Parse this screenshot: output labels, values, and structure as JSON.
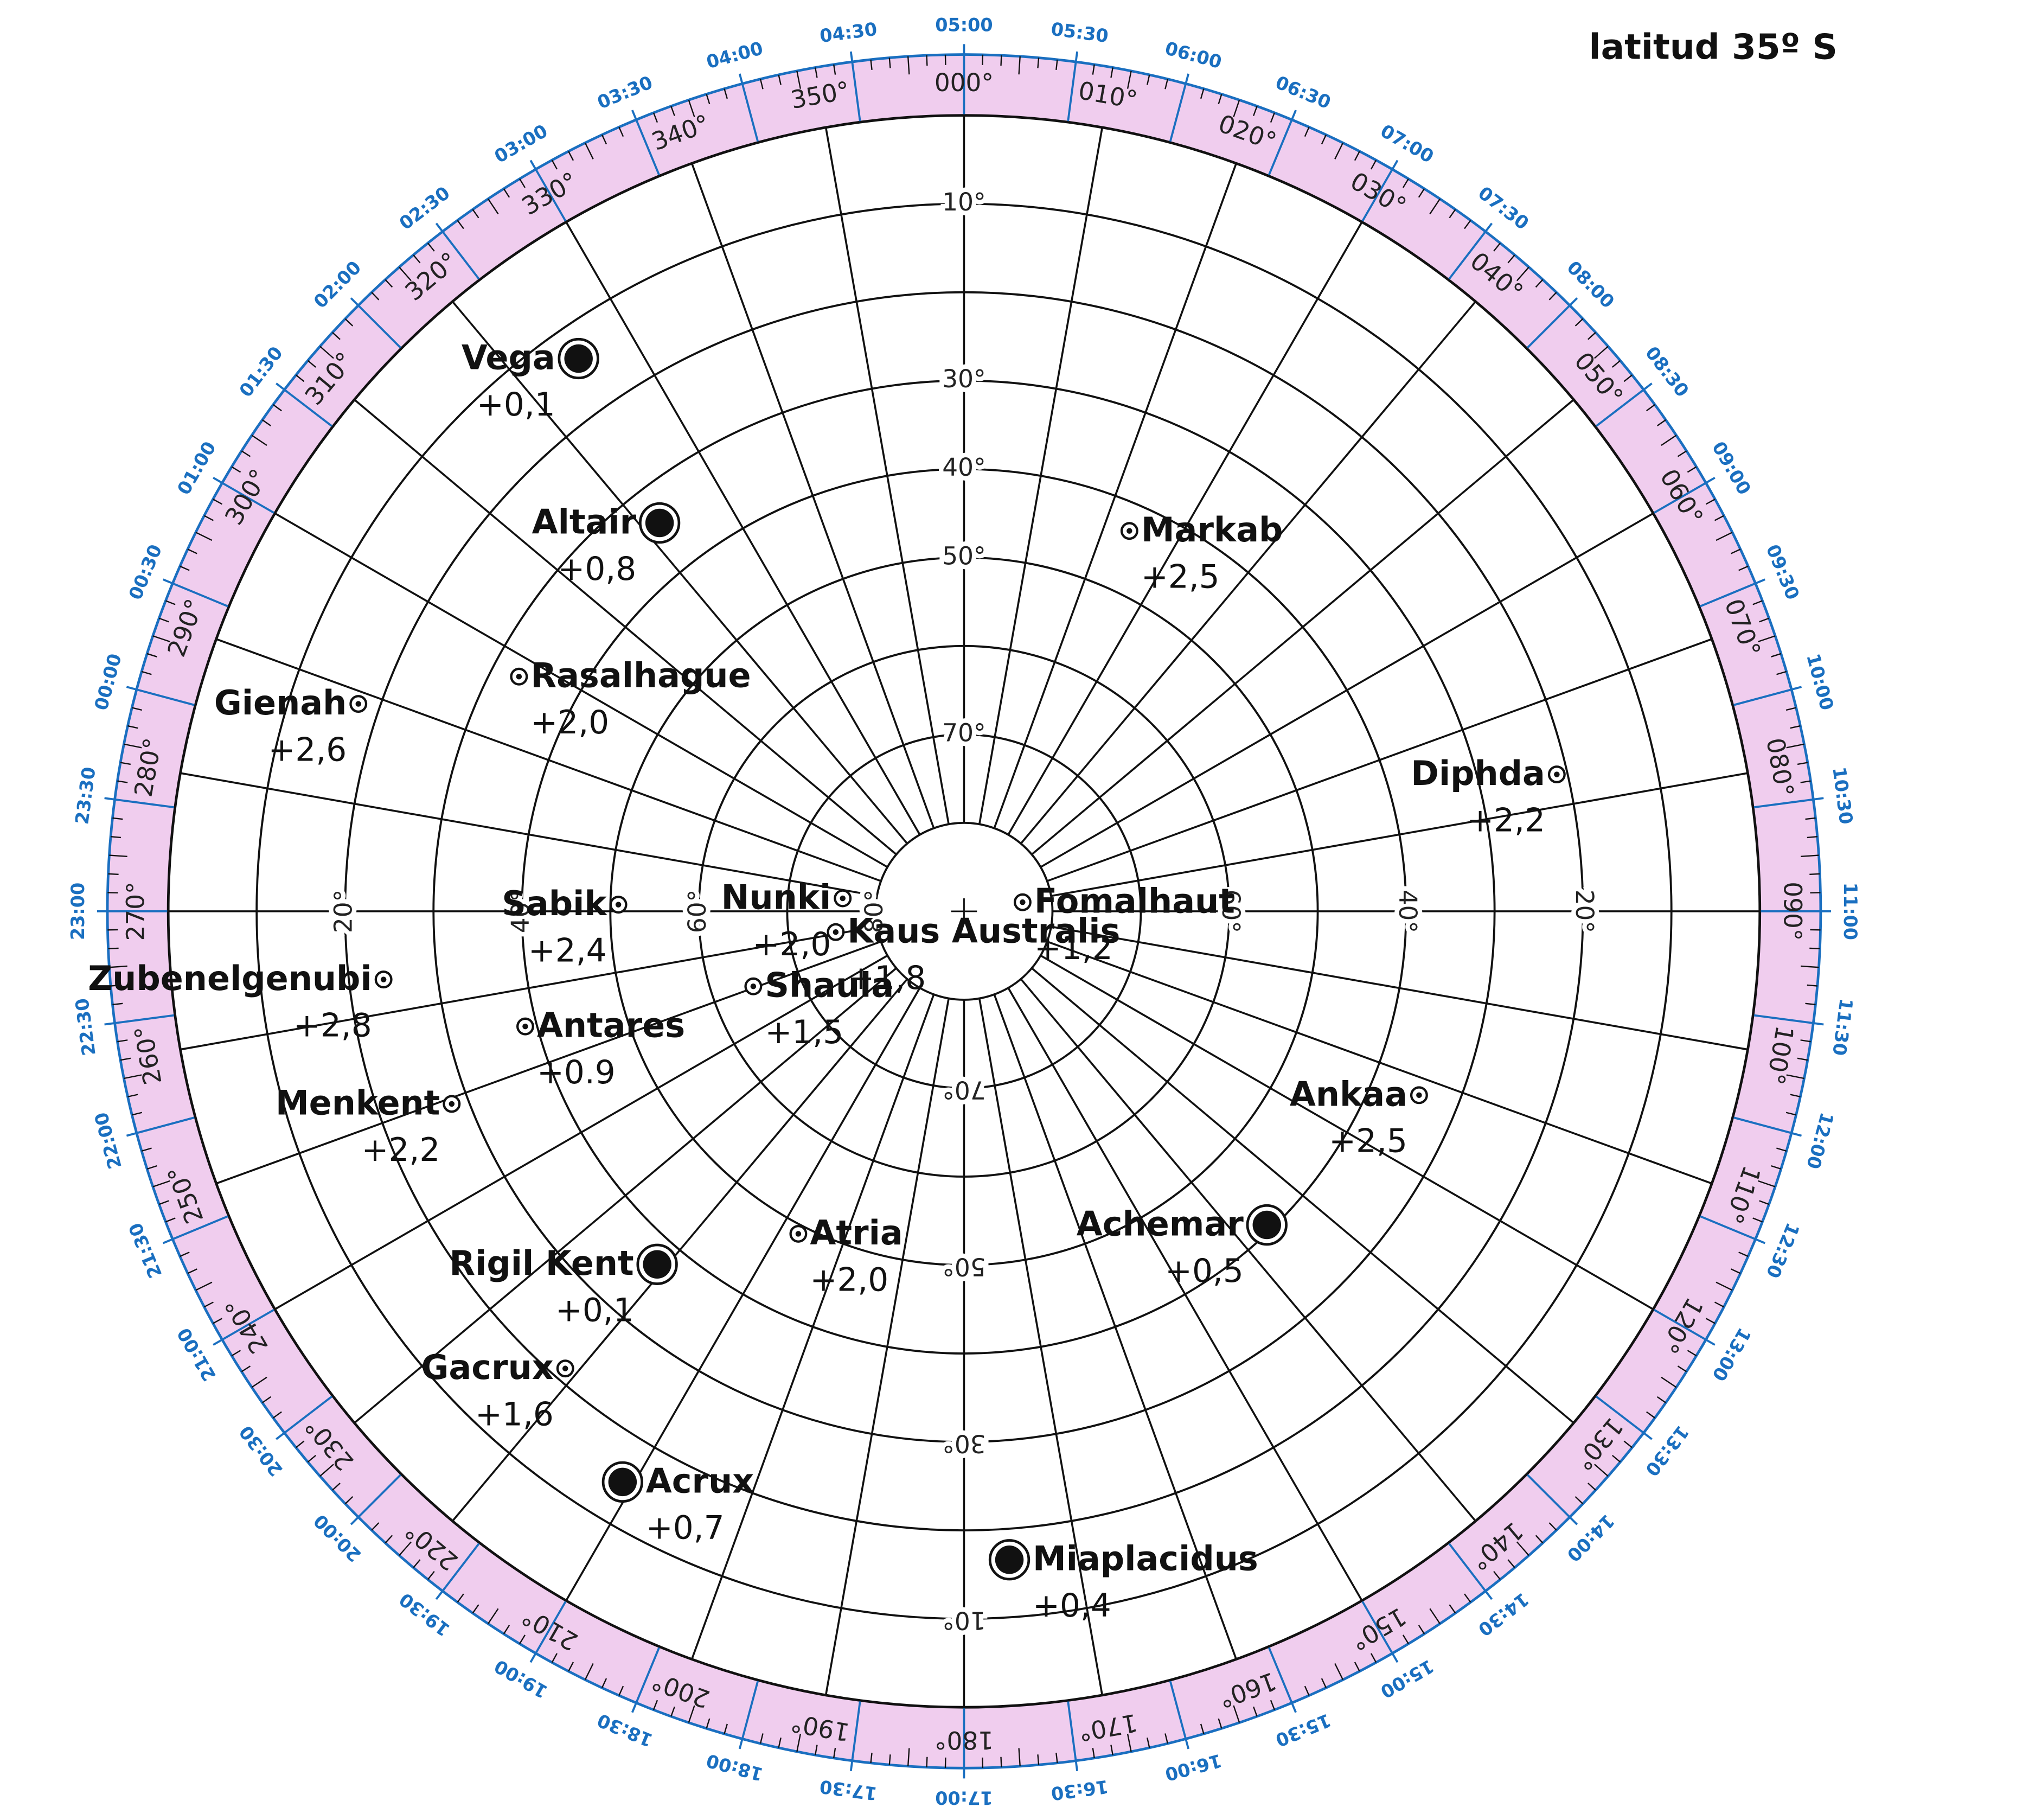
{
  "title": "latitud 35º S",
  "altitude_grid": [
    0,
    10,
    20,
    30,
    40,
    50,
    60,
    70,
    80
  ],
  "altitude_labels": {
    "n": [
      {
        "value": 10,
        "label": "10°"
      },
      {
        "value": 30,
        "label": "30°"
      },
      {
        "value": 40,
        "label": "40°"
      },
      {
        "value": 50,
        "label": "50°"
      },
      {
        "value": 70,
        "label": "70°"
      }
    ],
    "w": [
      {
        "value": 20,
        "label": "20°"
      },
      {
        "value": 40,
        "label": "40°"
      },
      {
        "value": 60,
        "label": "60°"
      },
      {
        "value": 80,
        "label": "80°"
      }
    ],
    "e": [
      {
        "value": 20,
        "label": "20°"
      },
      {
        "value": 40,
        "label": "40°"
      },
      {
        "value": 60,
        "label": "60°"
      }
    ],
    "s": [
      {
        "value": 10,
        "label": "10°"
      },
      {
        "value": 30,
        "label": "30°"
      },
      {
        "value": 50,
        "label": "50°"
      },
      {
        "value": 70,
        "label": "70°"
      }
    ]
  },
  "azimuth_ticks": [
    {
      "value": 0,
      "label": "000°"
    },
    {
      "value": 10,
      "label": "010°"
    },
    {
      "value": 20,
      "label": "020°"
    },
    {
      "value": 30,
      "label": "030°"
    },
    {
      "value": 40,
      "label": "040°"
    },
    {
      "value": 50,
      "label": "050°"
    },
    {
      "value": 60,
      "label": "060°"
    },
    {
      "value": 70,
      "label": "070°"
    },
    {
      "value": 80,
      "label": "080°"
    },
    {
      "value": 90,
      "label": "090°"
    },
    {
      "value": 100,
      "label": "100°"
    },
    {
      "value": 110,
      "label": "110°"
    },
    {
      "value": 120,
      "label": "120°"
    },
    {
      "value": 130,
      "label": "130°"
    },
    {
      "value": 140,
      "label": "140°"
    },
    {
      "value": 150,
      "label": "150°"
    },
    {
      "value": 160,
      "label": "160°"
    },
    {
      "value": 170,
      "label": "170°"
    },
    {
      "value": 180,
      "label": "180°"
    },
    {
      "value": 190,
      "label": "190°"
    },
    {
      "value": 200,
      "label": "200°"
    },
    {
      "value": 210,
      "label": "210°"
    },
    {
      "value": 220,
      "label": "220°"
    },
    {
      "value": 230,
      "label": "230°"
    },
    {
      "value": 240,
      "label": "240°"
    },
    {
      "value": 250,
      "label": "250°"
    },
    {
      "value": 260,
      "label": "260°"
    },
    {
      "value": 270,
      "label": "270°"
    },
    {
      "value": 280,
      "label": "280°"
    },
    {
      "value": 290,
      "label": "290°"
    },
    {
      "value": 300,
      "label": "300°"
    },
    {
      "value": 310,
      "label": "310°"
    },
    {
      "value": 320,
      "label": "320°"
    },
    {
      "value": 330,
      "label": "330°"
    },
    {
      "value": 340,
      "label": "340°"
    },
    {
      "value": 350,
      "label": "350°"
    }
  ],
  "time_ticks": [
    {
      "value": 5,
      "label": "05:00"
    },
    {
      "value": 5.5,
      "label": "05:30"
    },
    {
      "value": 6,
      "label": "06:00"
    },
    {
      "value": 6.5,
      "label": "06:30"
    },
    {
      "value": 7,
      "label": "07:00"
    },
    {
      "value": 7.5,
      "label": "07:30"
    },
    {
      "value": 8,
      "label": "08:00"
    },
    {
      "value": 8.5,
      "label": "08:30"
    },
    {
      "value": 9,
      "label": "09:00"
    },
    {
      "value": 9.5,
      "label": "09:30"
    },
    {
      "value": 10,
      "label": "10:00"
    },
    {
      "value": 10.5,
      "label": "10:30"
    },
    {
      "value": 11,
      "label": "11:00"
    },
    {
      "value": 11.5,
      "label": "11:30"
    },
    {
      "value": 12,
      "label": "12:00"
    },
    {
      "value": 12.5,
      "label": "12:30"
    },
    {
      "value": 13,
      "label": "13:00"
    },
    {
      "value": 13.5,
      "label": "13:30"
    },
    {
      "value": 14,
      "label": "14:00"
    },
    {
      "value": 14.5,
      "label": "14:30"
    },
    {
      "value": 15,
      "label": "15:00"
    },
    {
      "value": 15.5,
      "label": "15:30"
    },
    {
      "value": 16,
      "label": "16:00"
    },
    {
      "value": 16.5,
      "label": "16:30"
    },
    {
      "value": 17,
      "label": "17:00"
    },
    {
      "value": 17.5,
      "label": "17:30"
    },
    {
      "value": 18,
      "label": "18:00"
    },
    {
      "value": 18.5,
      "label": "18:30"
    },
    {
      "value": 19,
      "label": "19:00"
    },
    {
      "value": 19.5,
      "label": "19:30"
    },
    {
      "value": 20,
      "label": "20:00"
    },
    {
      "value": 20.5,
      "label": "20:30"
    },
    {
      "value": 21,
      "label": "21:00"
    },
    {
      "value": 21.5,
      "label": "21:30"
    },
    {
      "value": 22,
      "label": "22:00"
    },
    {
      "value": 22.5,
      "label": "22:30"
    },
    {
      "value": 23,
      "label": "23:00"
    },
    {
      "value": 23.5,
      "label": "23:30"
    },
    {
      "value": 0,
      "label": "00:00"
    },
    {
      "value": 0.5,
      "label": "00:30"
    },
    {
      "value": 1,
      "label": "01:00"
    },
    {
      "value": 1.5,
      "label": "01:30"
    },
    {
      "value": 2,
      "label": "02:00"
    },
    {
      "value": 2.5,
      "label": "02:30"
    },
    {
      "value": 3,
      "label": "03:00"
    },
    {
      "value": 3.5,
      "label": "03:30"
    },
    {
      "value": 4,
      "label": "04:00"
    },
    {
      "value": 4.5,
      "label": "04:30"
    }
  ],
  "stars": [
    {
      "name": "Vega",
      "az": 325.1,
      "alt": 13.8,
      "magnitude": 0.1,
      "magnitude_label": "+0,1"
    },
    {
      "name": "Altair",
      "az": 321.9,
      "alt": 34.2,
      "magnitude": 0.8,
      "magnitude_label": "+0,8"
    },
    {
      "name": "Markab",
      "az": 23.5,
      "alt": 43.1,
      "magnitude": 2.5,
      "magnitude_label": "+2,5"
    },
    {
      "name": "Rasalhague",
      "az": 297.8,
      "alt": 33.1,
      "magnitude": 2.0,
      "magnitude_label": "+2,0"
    },
    {
      "name": "Gienah",
      "az": 288.9,
      "alt": 17.6,
      "magnitude": 2.6,
      "magnitude_label": "+2,6"
    },
    {
      "name": "Diphda",
      "az": 77.0,
      "alt": 21.2,
      "magnitude": 2.2,
      "magnitude_label": "+2,2"
    },
    {
      "name": "Sabik",
      "az": 271.1,
      "alt": 50.9,
      "magnitude": 2.4,
      "magnitude_label": "+2,4"
    },
    {
      "name": "Nunki",
      "az": 276.1,
      "alt": 76.2,
      "magnitude": 2.0,
      "magnitude_label": "+2,0"
    },
    {
      "name": "Fomalhaut",
      "az": 81.2,
      "alt": 83.3,
      "magnitude": 1.2,
      "magnitude_label": "+1,2"
    },
    {
      "name": "Kaus Australis",
      "az": 260.8,
      "alt": 75.3,
      "magnitude": 1.8,
      "magnitude_label": "+1,8"
    },
    {
      "name": "Shaula",
      "az": 250.4,
      "alt": 64.7,
      "magnitude": 1.5,
      "magnitude_label": "+1,5"
    },
    {
      "name": "Zubenelgenubi",
      "az": 263.3,
      "alt": 23.9,
      "magnitude": 2.8,
      "magnitude_label": "+2,8"
    },
    {
      "name": "Antares",
      "az": 255.3,
      "alt": 38.7,
      "magnitude": 0.9,
      "magnitude_label": "+0.9"
    },
    {
      "name": "Menkent",
      "az": 249.4,
      "alt": 28.1,
      "magnitude": 2.2,
      "magnitude_label": "+2,2"
    },
    {
      "name": "Ankaa",
      "az": 112.0,
      "alt": 34.5,
      "magnitude": 2.5,
      "magnitude_label": "+2,5"
    },
    {
      "name": "Achemar",
      "az": 136.0,
      "alt": 40.7,
      "magnitude": 0.5,
      "magnitude_label": "+0,5"
    },
    {
      "name": "Rigil Kent",
      "az": 221.0,
      "alt": 37.1,
      "magnitude": 0.1,
      "magnitude_label": "+0,1"
    },
    {
      "name": "Atria",
      "az": 207.2,
      "alt": 49.0,
      "magnitude": 2.0,
      "magnitude_label": "+2,0"
    },
    {
      "name": "Gacrux",
      "az": 221.1,
      "alt": 21.4,
      "magnitude": 1.6,
      "magnitude_label": "+1,6"
    },
    {
      "name": "Acrux",
      "az": 210.9,
      "alt": 14.8,
      "magnitude": 0.7,
      "magnitude_label": "+0,7"
    },
    {
      "name": "Miaplacidus",
      "az": 176.0,
      "alt": 16.5,
      "magnitude": 0.4,
      "magnitude_label": "+0,4"
    }
  ]
}
